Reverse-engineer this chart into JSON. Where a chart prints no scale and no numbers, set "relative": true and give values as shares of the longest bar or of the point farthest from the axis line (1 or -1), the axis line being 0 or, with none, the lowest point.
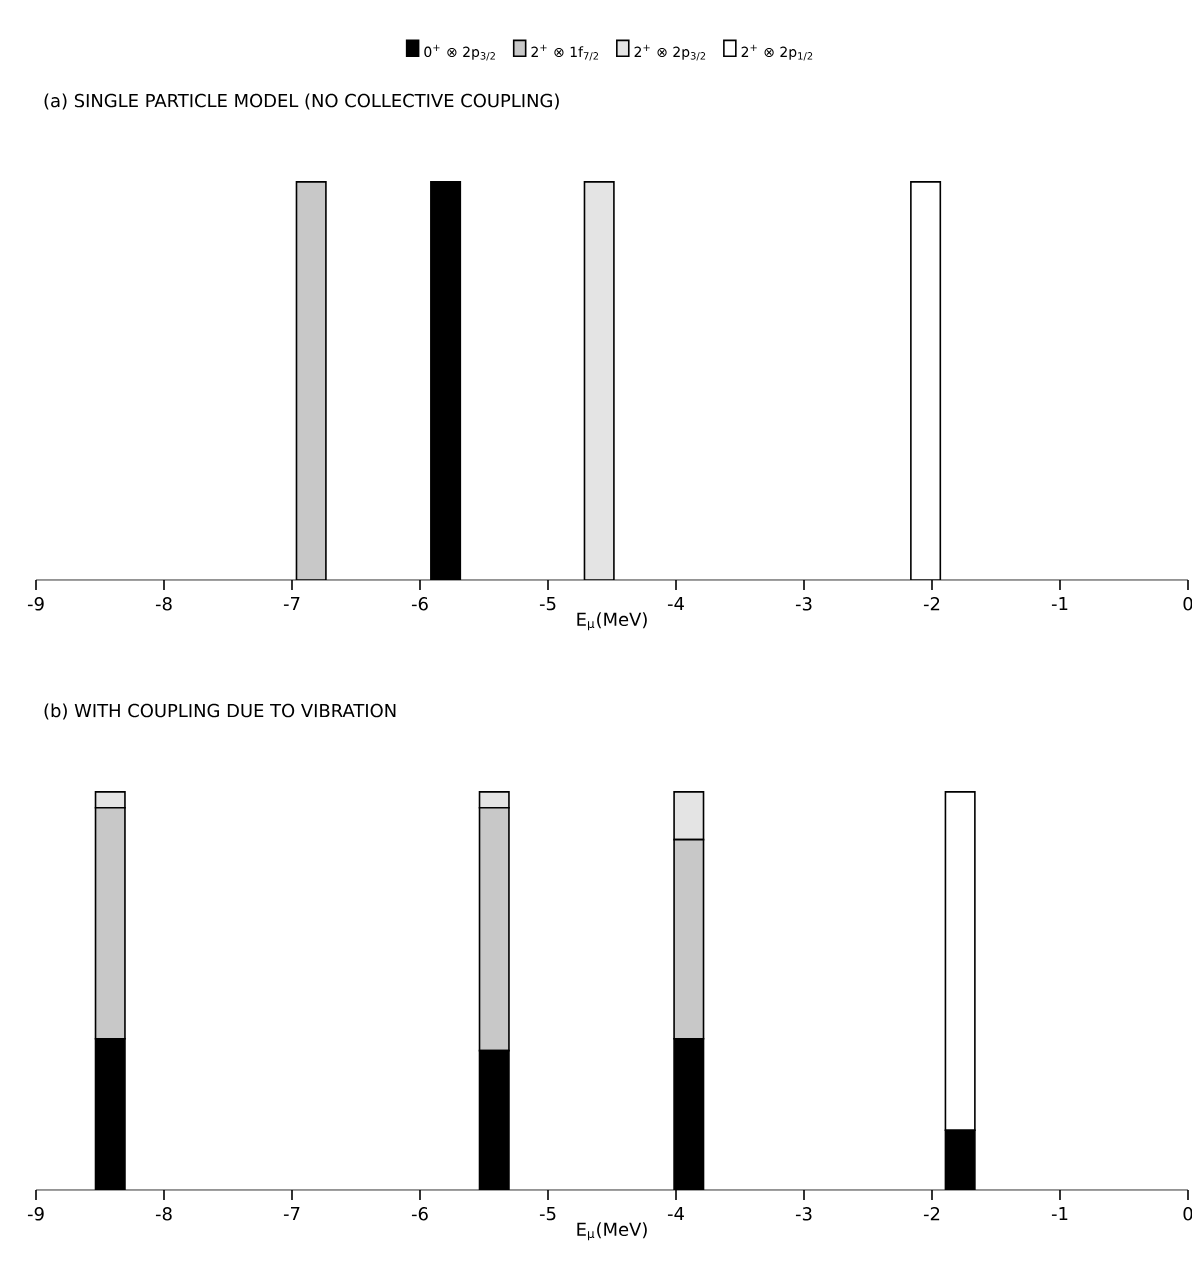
{
  "chart_data": [
    {
      "type": "bar",
      "title": "(a) SINGLE PARTICLE MODEL (NO COLLECTIVE COUPLING)",
      "xlabel": "E$_{μ}$(MeV)",
      "relative": true,
      "stacked": true,
      "legend": "top",
      "x": [
        -6.85,
        -5.8,
        -4.6,
        -2.05
      ],
      "xlim": [
        -9,
        0
      ],
      "xticks": [
        -9,
        -8,
        -7,
        -6,
        -5,
        -4,
        -3,
        -2,
        -1,
        0
      ],
      "tick_labels": "x",
      "series": [
        {
          "name": "0$^{+}$ ⊗ 2p$_{3/2}$",
          "color": "#000000",
          "values": [
            null,
            1,
            null,
            null
          ]
        },
        {
          "name": "2$^{+}$ ⊗ 1f$_{7/2}$",
          "color": "#c8c8c8",
          "values": [
            1,
            null,
            null,
            null
          ]
        },
        {
          "name": "2$^{+}$ ⊗ 2p$_{3/2}$",
          "color": "#e4e4e4",
          "values": [
            null,
            null,
            1,
            null
          ]
        },
        {
          "name": "2$^{+}$ ⊗ 2p$_{1/2}$",
          "color": "#ffffff",
          "values": [
            null,
            null,
            null,
            1
          ]
        }
      ]
    },
    {
      "type": "bar",
      "title": "(b) WITH COUPLING DUE TO VIBRATION",
      "xlabel": "E$_{μ}$(MeV)",
      "relative": true,
      "stacked": true,
      "x": [
        -8.42,
        -5.42,
        -3.9,
        -1.78
      ],
      "xlim": [
        -9,
        0
      ],
      "xticks": [
        -9,
        -8,
        -7,
        -6,
        -5,
        -4,
        -3,
        -2,
        -1,
        0
      ],
      "tick_labels": "x",
      "series": [
        {
          "color": "#000000",
          "values": [
            0.38,
            0.35,
            0.38,
            0.15
          ]
        },
        {
          "color": "#c8c8c8",
          "values": [
            0.58,
            0.61,
            0.5,
            null
          ]
        },
        {
          "color": "#e4e4e4",
          "values": [
            0.04,
            0.04,
            0.12,
            null
          ]
        },
        {
          "color": "#ffffff",
          "values": [
            null,
            null,
            null,
            0.85
          ]
        }
      ]
    }
  ]
}
